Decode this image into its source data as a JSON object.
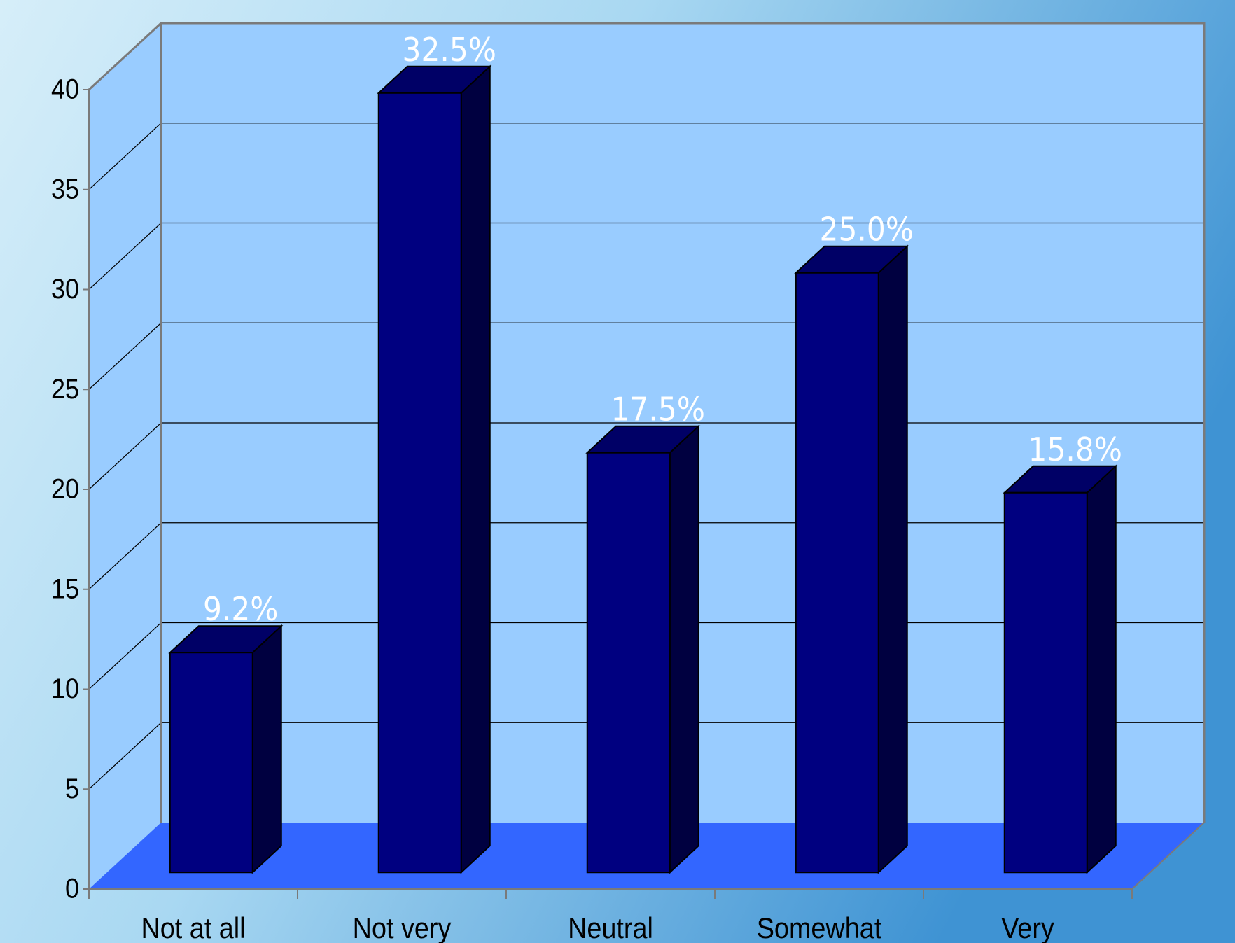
{
  "colors": {
    "background_light": "#d6eef9",
    "background_dark": "#3f93d3",
    "back_wall": "#99ccff",
    "floor": "#3366ff",
    "bar_front": "#000080",
    "bar_side": "#000040",
    "bar_top": "#000066",
    "data_label": "#ffffff",
    "axis_text": "#000000"
  },
  "chart_data": {
    "type": "bar",
    "style": "3d-column",
    "categories": [
      "Not at all",
      "Not very",
      "Neutral",
      "Somewhat",
      "Very"
    ],
    "values": [
      11,
      39,
      21,
      30,
      19
    ],
    "data_labels": [
      "9.2%",
      "32.5%",
      "17.5%",
      "25.0%",
      "15.8%"
    ],
    "ylim": [
      0,
      40
    ],
    "yticks": [
      0,
      5,
      10,
      15,
      20,
      25,
      30,
      35,
      40
    ],
    "grid": true,
    "legend": "none",
    "title": "",
    "xlabel": "",
    "ylabel": ""
  }
}
